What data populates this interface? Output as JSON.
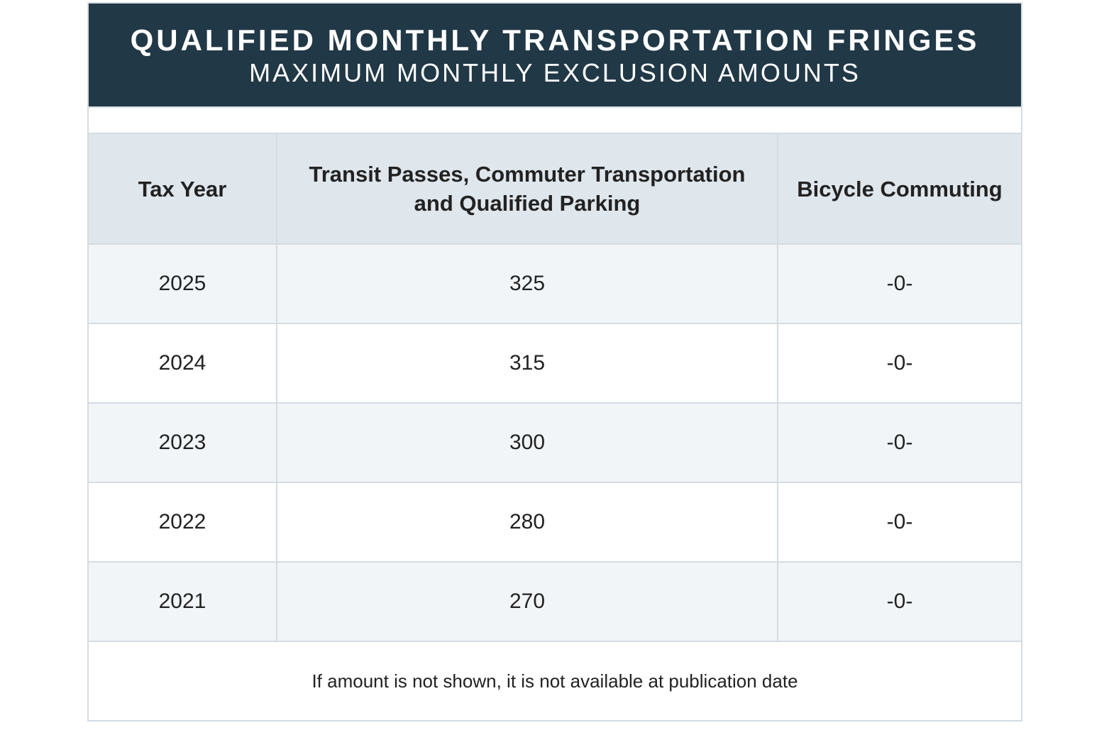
{
  "title": "QUALIFIED MONTHLY TRANSPORTATION FRINGES",
  "subtitle": "MAXIMUM MONTHLY EXCLUSION AMOUNTS",
  "columns": [
    "Tax Year",
    "Transit Passes, Commuter Transportation and Qualified Parking",
    "Bicycle Commuting"
  ],
  "rows": [
    [
      "2025",
      "325",
      "-0-"
    ],
    [
      "2024",
      "315",
      "-0-"
    ],
    [
      "2023",
      "300",
      "-0-"
    ],
    [
      "2022",
      "280",
      "-0-"
    ],
    [
      "2021",
      "270",
      "-0-"
    ]
  ],
  "footnote": "If amount is not shown, it is not available at publication date",
  "colors": {
    "header_bg": "#213847",
    "column_header_bg": "#dfe6ec",
    "alt_row_bg": "#f1f5f8",
    "border": "#d5dce1"
  }
}
